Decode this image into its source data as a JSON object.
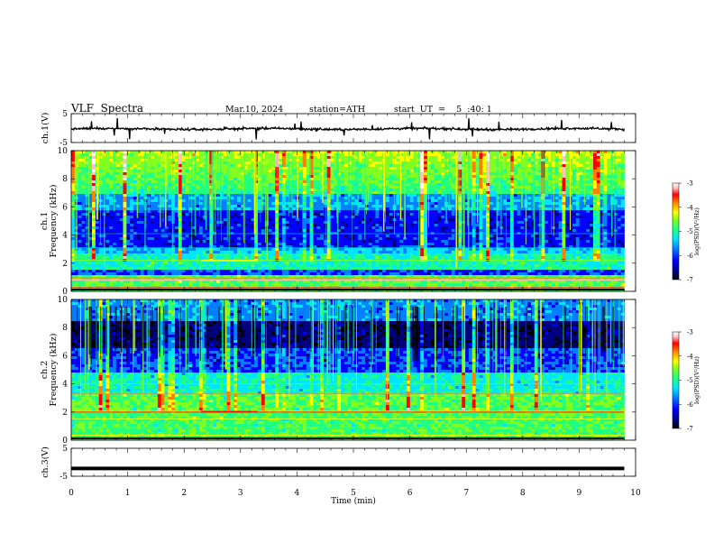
{
  "header": {
    "title": "VLF  Spectra",
    "date": "Mar.10, 2024",
    "station": "station=ATH",
    "start_time": "start  UT  =    5  :40: 1"
  },
  "chart_data": [
    {
      "type": "line",
      "name": "ch1-waveform",
      "ylabel": "ch.1(V)",
      "ylim": [
        -5,
        5
      ],
      "y_ticks": [
        "5",
        "-5"
      ],
      "xlim": [
        0,
        10
      ],
      "baseline": -0.3,
      "grid": false
    },
    {
      "type": "heatmap",
      "name": "ch1-spectrogram",
      "ylabel": "ch.1\nFrequency (kHz)",
      "ylabel_lines": [
        "ch.1",
        "Frequency (kHz)"
      ],
      "ylim": [
        0,
        10
      ],
      "y_ticks": [
        "0",
        "2",
        "4",
        "6",
        "8",
        "10"
      ],
      "xlim": [
        0,
        10
      ],
      "data_end_min": 9.8,
      "colorbar": {
        "label": "log(PSD)(V²/Hz)",
        "range": [
          -7,
          -3
        ],
        "ticks": [
          "-3",
          "-4",
          "-5",
          "-6",
          "-7"
        ]
      }
    },
    {
      "type": "heatmap",
      "name": "ch2-spectrogram",
      "ylabel": "ch.2\nFrequency (kHz)",
      "ylabel_lines": [
        "ch.2",
        "Frequency (kHz)"
      ],
      "ylim": [
        0,
        10
      ],
      "y_ticks": [
        "0",
        "2",
        "4",
        "6",
        "8",
        "10"
      ],
      "xlim": [
        0,
        10
      ],
      "data_end_min": 9.8,
      "colorbar": {
        "label": "log(PSD)(V²/Hz)",
        "range": [
          -7,
          -3
        ],
        "ticks": [
          "-3",
          "-4",
          "-5",
          "-6",
          "-7"
        ]
      }
    },
    {
      "type": "line",
      "name": "ch3-waveform",
      "ylabel": "ch.3(V)",
      "ylim": [
        -5,
        5
      ],
      "y_ticks": [
        "5",
        "-5"
      ],
      "xlim": [
        0,
        10
      ],
      "baseline": -2.2,
      "grid": false
    }
  ],
  "x_axis": {
    "label": "Time  (min)",
    "ticks": [
      "0",
      "1",
      "2",
      "3",
      "4",
      "5",
      "6",
      "7",
      "8",
      "9",
      "10"
    ]
  },
  "colors": {
    "colormap": [
      "#000000",
      "#00007f",
      "#0000ff",
      "#0080ff",
      "#00e5ff",
      "#20ff80",
      "#80ff20",
      "#ffff00",
      "#ff8000",
      "#ff0000",
      "#ffc0c0",
      "#ffffff"
    ]
  }
}
